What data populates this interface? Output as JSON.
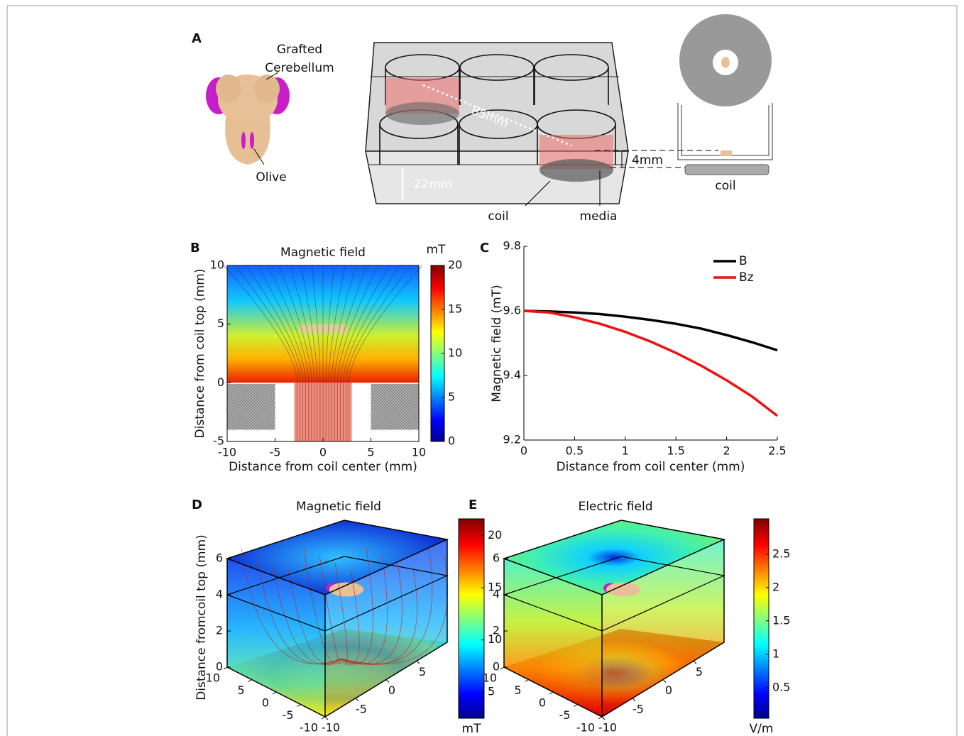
{
  "panel_a": {
    "letter": "A",
    "grafted": "Grafted",
    "cerebellum": "Cerebellum",
    "olive": "Olive",
    "distance": "85mm",
    "height": "22mm",
    "depth": "4mm",
    "coil": "coil",
    "media": "media",
    "coil_side": "coil"
  },
  "chart_data": [
    {
      "type": "field-map",
      "letter": "B",
      "title": "Magnetic field",
      "xlabel": "Distance from coil center (mm)",
      "ylabel": "Distance from coil top (mm)",
      "xlim": [
        -10,
        10
      ],
      "xticks": [
        -10,
        -5,
        0,
        5,
        10
      ],
      "ylim": [
        -5,
        10
      ],
      "yticks": [
        -5,
        0,
        5,
        10
      ],
      "colorbar": {
        "label": "mT",
        "lim": [
          0,
          20
        ],
        "ticks": [
          0,
          5,
          10,
          15,
          20
        ]
      }
    },
    {
      "type": "line",
      "letter": "C",
      "xlabel": "Distance from coil center (mm)",
      "ylabel": "Magnetic field (mT)",
      "xlim": [
        0,
        2.5
      ],
      "xticks": [
        0,
        0.5,
        1,
        1.5,
        2,
        2.5
      ],
      "ylim": [
        9.2,
        9.8
      ],
      "yticks": [
        9.2,
        9.4,
        9.6,
        9.8
      ],
      "x": [
        0,
        0.25,
        0.5,
        0.75,
        1,
        1.25,
        1.5,
        1.75,
        2,
        2.25,
        2.5
      ],
      "series": [
        {
          "name": "B",
          "color": "#000000",
          "values": [
            9.6,
            9.598,
            9.595,
            9.59,
            9.582,
            9.572,
            9.56,
            9.545,
            9.525,
            9.503,
            9.478
          ]
        },
        {
          "name": "Bz",
          "color": "#ee1111",
          "values": [
            9.6,
            9.595,
            9.58,
            9.56,
            9.535,
            9.505,
            9.47,
            9.43,
            9.385,
            9.335,
            9.275
          ]
        }
      ],
      "legend": "upper right"
    },
    {
      "type": "field-cube",
      "letter": "D",
      "title": "Magnetic field",
      "ylabel": "Distance fromcoil top (mm)",
      "zlim": [
        0,
        6
      ],
      "zticks": [
        0,
        2,
        4,
        6
      ],
      "ylim": [
        -10,
        10
      ],
      "yticks": [
        10,
        5,
        0,
        -5,
        -10
      ],
      "xlim": [
        -10,
        10
      ],
      "xticks": [
        -10,
        -5,
        0,
        5
      ],
      "colorbar": {
        "label": "mT",
        "lim": [
          2.5,
          21.6
        ],
        "ticks": [
          5,
          10,
          15,
          20
        ]
      }
    },
    {
      "type": "field-cube",
      "letter": "E",
      "title": "Electric field",
      "zlim": [
        0,
        6
      ],
      "zticks": [
        0,
        2,
        4,
        6
      ],
      "ylim": [
        -10,
        10
      ],
      "yticks": [
        10,
        5,
        0,
        -5,
        -10
      ],
      "xlim": [
        -10,
        10
      ],
      "xticks": [
        -10,
        -5,
        0,
        5
      ],
      "colorbar": {
        "label": "V/m",
        "lim": [
          0.04,
          3.03
        ],
        "ticks": [
          0.5,
          1,
          1.5,
          2,
          2.5
        ]
      }
    }
  ]
}
